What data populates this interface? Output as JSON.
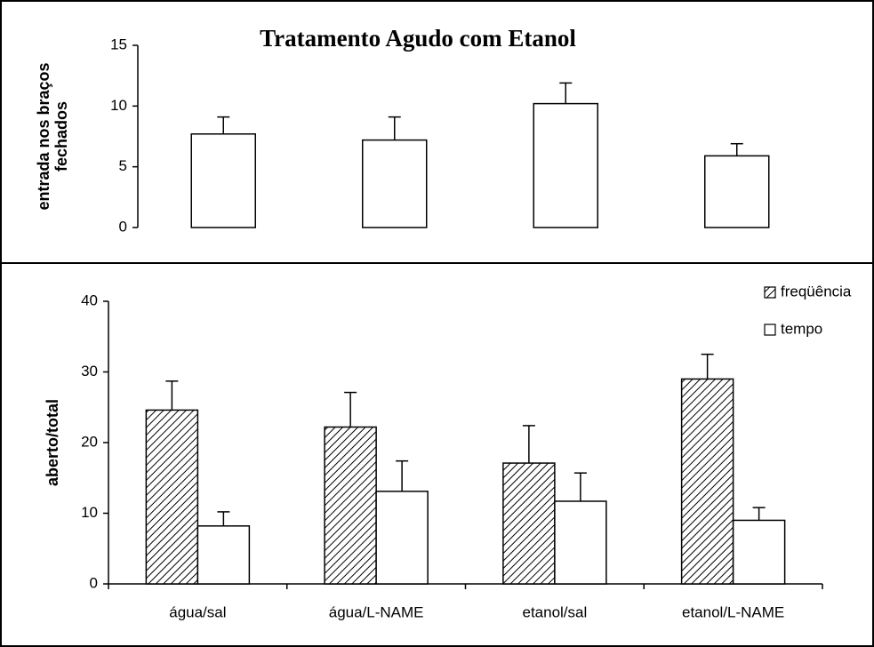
{
  "chart_data": [
    {
      "type": "bar",
      "title": "Tratamento Agudo com Etanol",
      "y_label": [
        "entrada nos braços",
        "fechados"
      ],
      "categories": [
        null,
        null,
        null,
        null
      ],
      "series": [
        {
          "color": "#ffffff",
          "values": [
            7.7,
            7.2,
            10.2,
            5.9
          ],
          "errors": [
            1.4,
            1.9,
            1.7,
            1.0
          ]
        }
      ],
      "ylim": [
        0,
        15
      ],
      "yticks": [
        0,
        5,
        10,
        15
      ]
    },
    {
      "type": "bar",
      "y_label": [
        "aberto/total"
      ],
      "categories": [
        "água/sal",
        "água/L-NAME",
        "etanol/sal",
        "etanol/L-NAME"
      ],
      "series": [
        {
          "name": "freqüência",
          "color": "#ffffff",
          "hatch": true,
          "values": [
            24.6,
            22.2,
            17.1,
            29.0
          ],
          "errors": [
            4.1,
            4.9,
            5.3,
            3.5
          ]
        },
        {
          "name": "tempo",
          "color": "#ffffff",
          "values": [
            8.2,
            13.1,
            11.7,
            9.0
          ],
          "errors": [
            2.0,
            4.3,
            4.0,
            1.8
          ]
        }
      ],
      "ylim": [
        0,
        40
      ],
      "yticks": [
        0,
        10,
        20,
        30,
        40
      ],
      "legend": "upper right"
    }
  ]
}
